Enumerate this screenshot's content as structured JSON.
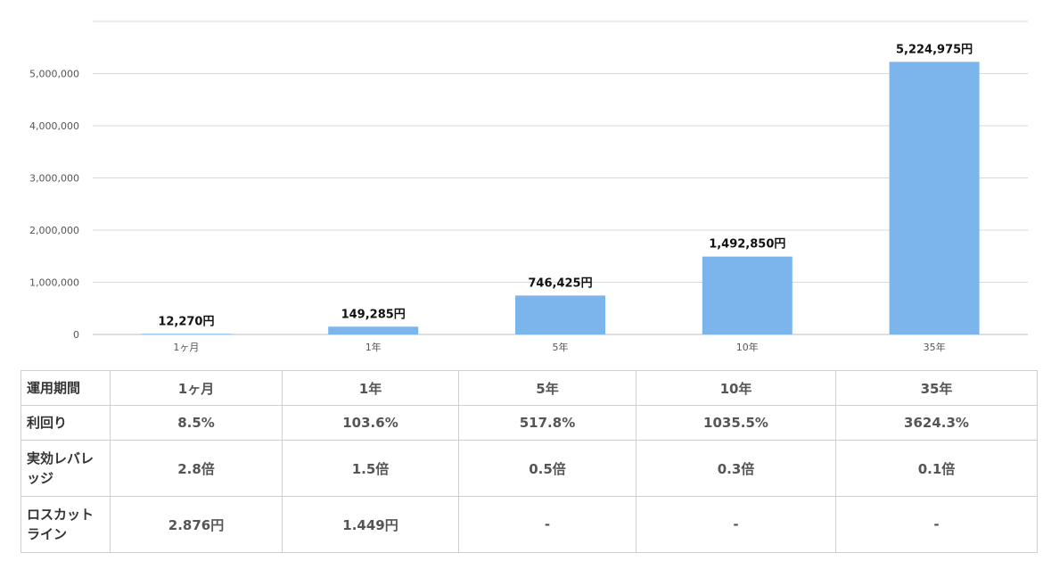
{
  "chart_data": {
    "type": "bar",
    "categories": [
      "1ヶ月",
      "1年",
      "5年",
      "10年",
      "35年"
    ],
    "values": [
      12270,
      149285,
      746425,
      1492850,
      5224975
    ],
    "data_labels": [
      "12,270円",
      "149,285円",
      "746,425円",
      "1,492,850円",
      "5,224,975円"
    ],
    "y_ticks": [
      0,
      1000000,
      2000000,
      3000000,
      4000000,
      5000000
    ],
    "y_tick_labels": [
      "0",
      "1,000,000",
      "2,000,000",
      "3,000,000",
      "4,000,000",
      "5,000,000"
    ],
    "ylim": [
      0,
      6000000
    ],
    "grid": true,
    "colors": {
      "bar": "#7cb5ec"
    }
  },
  "table": {
    "headers": [
      "運用期間",
      "1ヶ月",
      "1年",
      "5年",
      "10年",
      "35年"
    ],
    "rows": [
      {
        "label": "利回り",
        "values": [
          "8.5%",
          "103.6%",
          "517.8%",
          "1035.5%",
          "3624.3%"
        ]
      },
      {
        "label": "実効レバレッジ",
        "values": [
          "2.8倍",
          "1.5倍",
          "0.5倍",
          "0.3倍",
          "0.1倍"
        ]
      },
      {
        "label": "ロスカットライン",
        "values": [
          "2.876円",
          "1.449円",
          "-",
          "-",
          "-"
        ]
      }
    ]
  }
}
